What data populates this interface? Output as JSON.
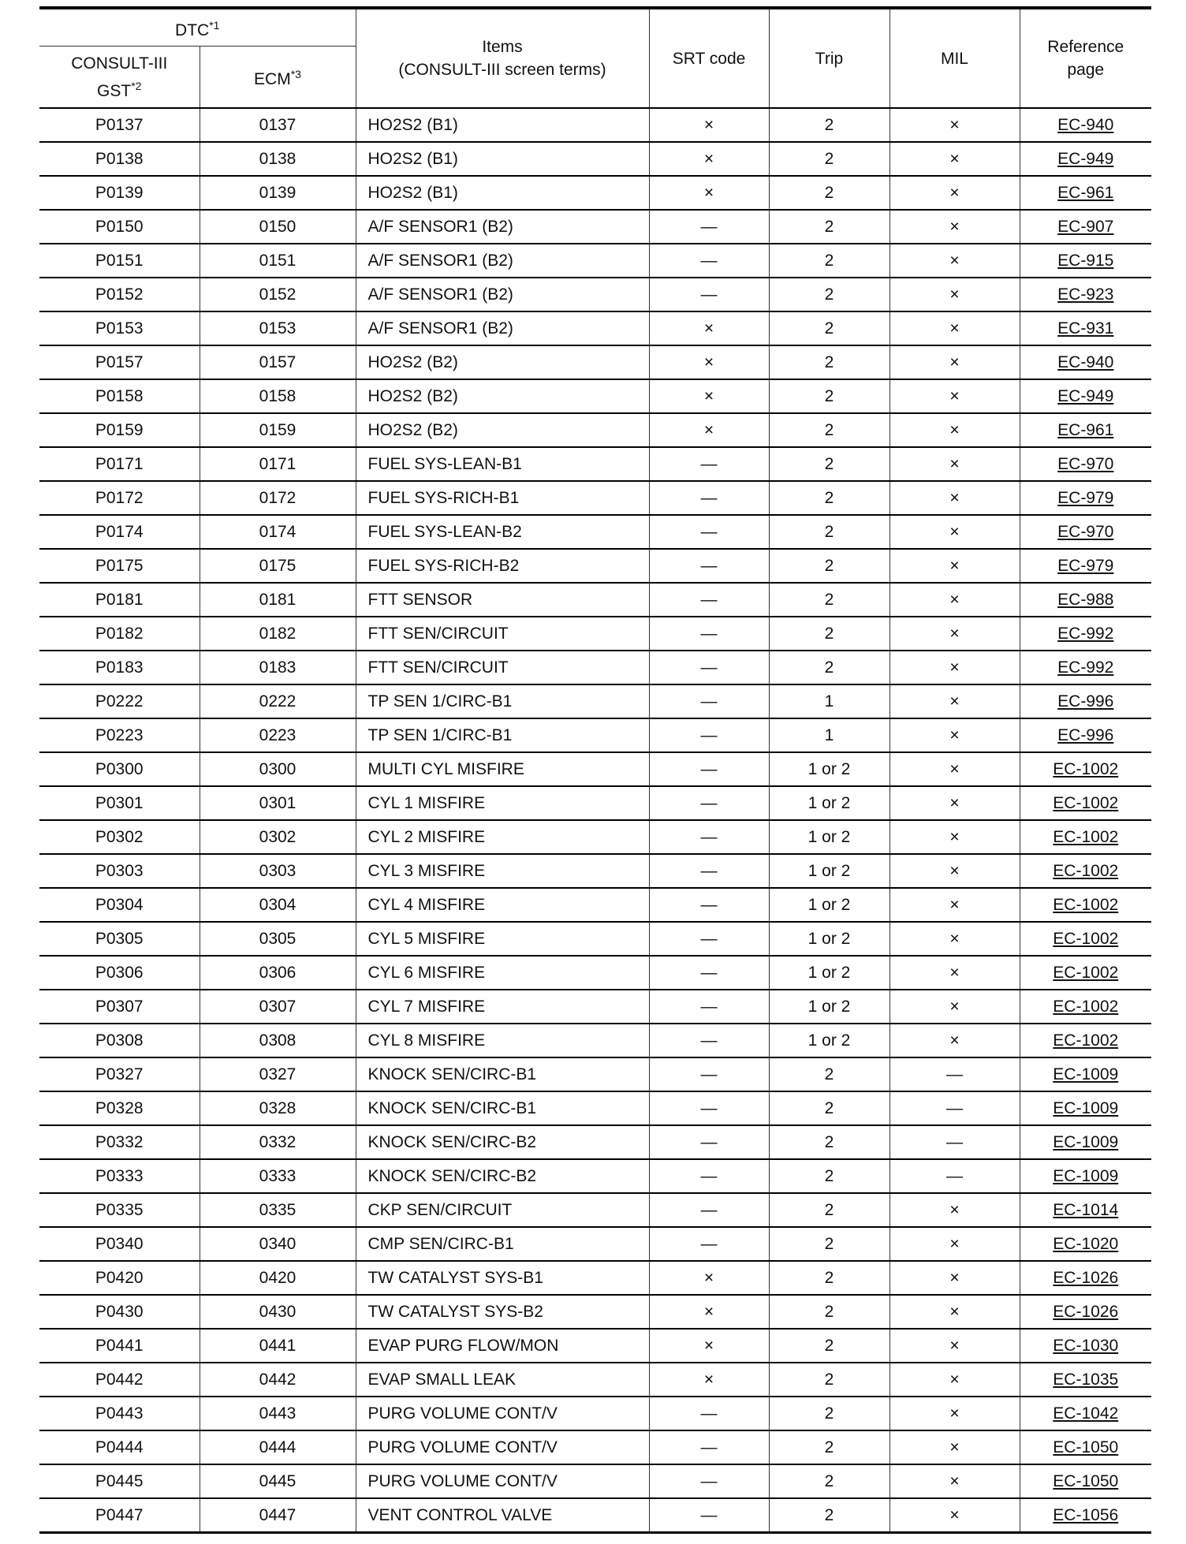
{
  "header": {
    "dtc": "DTC",
    "dtc_sup": "*1",
    "consult": "CONSULT-III",
    "gst": "GST",
    "gst_sup": "*2",
    "ecm": "ECM",
    "ecm_sup": "*3",
    "items": "Items",
    "items_sub": "(CONSULT-III screen terms)",
    "srt": "SRT code",
    "trip": "Trip",
    "mil": "MIL",
    "ref": "Reference",
    "ref_sub": "page"
  },
  "rows": [
    [
      "P0137",
      "0137",
      "HO2S2 (B1)",
      "×",
      "2",
      "×",
      "EC-940"
    ],
    [
      "P0138",
      "0138",
      "HO2S2 (B1)",
      "×",
      "2",
      "×",
      "EC-949"
    ],
    [
      "P0139",
      "0139",
      "HO2S2 (B1)",
      "×",
      "2",
      "×",
      "EC-961"
    ],
    [
      "P0150",
      "0150",
      "A/F SENSOR1 (B2)",
      "—",
      "2",
      "×",
      "EC-907"
    ],
    [
      "P0151",
      "0151",
      "A/F SENSOR1 (B2)",
      "—",
      "2",
      "×",
      "EC-915"
    ],
    [
      "P0152",
      "0152",
      "A/F SENSOR1 (B2)",
      "—",
      "2",
      "×",
      "EC-923"
    ],
    [
      "P0153",
      "0153",
      "A/F SENSOR1 (B2)",
      "×",
      "2",
      "×",
      "EC-931"
    ],
    [
      "P0157",
      "0157",
      "HO2S2 (B2)",
      "×",
      "2",
      "×",
      "EC-940"
    ],
    [
      "P0158",
      "0158",
      "HO2S2 (B2)",
      "×",
      "2",
      "×",
      "EC-949"
    ],
    [
      "P0159",
      "0159",
      "HO2S2 (B2)",
      "×",
      "2",
      "×",
      "EC-961"
    ],
    [
      "P0171",
      "0171",
      "FUEL SYS-LEAN-B1",
      "—",
      "2",
      "×",
      "EC-970"
    ],
    [
      "P0172",
      "0172",
      "FUEL SYS-RICH-B1",
      "—",
      "2",
      "×",
      "EC-979"
    ],
    [
      "P0174",
      "0174",
      "FUEL SYS-LEAN-B2",
      "—",
      "2",
      "×",
      "EC-970"
    ],
    [
      "P0175",
      "0175",
      "FUEL SYS-RICH-B2",
      "—",
      "2",
      "×",
      "EC-979"
    ],
    [
      "P0181",
      "0181",
      "FTT SENSOR",
      "—",
      "2",
      "×",
      "EC-988"
    ],
    [
      "P0182",
      "0182",
      "FTT SEN/CIRCUIT",
      "—",
      "2",
      "×",
      "EC-992"
    ],
    [
      "P0183",
      "0183",
      "FTT SEN/CIRCUIT",
      "—",
      "2",
      "×",
      "EC-992"
    ],
    [
      "P0222",
      "0222",
      "TP SEN 1/CIRC-B1",
      "—",
      "1",
      "×",
      "EC-996"
    ],
    [
      "P0223",
      "0223",
      "TP SEN 1/CIRC-B1",
      "—",
      "1",
      "×",
      "EC-996"
    ],
    [
      "P0300",
      "0300",
      "MULTI CYL MISFIRE",
      "—",
      "1 or 2",
      "×",
      "EC-1002"
    ],
    [
      "P0301",
      "0301",
      "CYL 1 MISFIRE",
      "—",
      "1 or 2",
      "×",
      "EC-1002"
    ],
    [
      "P0302",
      "0302",
      "CYL 2 MISFIRE",
      "—",
      "1 or 2",
      "×",
      "EC-1002"
    ],
    [
      "P0303",
      "0303",
      "CYL 3 MISFIRE",
      "—",
      "1 or 2",
      "×",
      "EC-1002"
    ],
    [
      "P0304",
      "0304",
      "CYL 4 MISFIRE",
      "—",
      "1 or 2",
      "×",
      "EC-1002"
    ],
    [
      "P0305",
      "0305",
      "CYL 5 MISFIRE",
      "—",
      "1 or 2",
      "×",
      "EC-1002"
    ],
    [
      "P0306",
      "0306",
      "CYL 6 MISFIRE",
      "—",
      "1 or 2",
      "×",
      "EC-1002"
    ],
    [
      "P0307",
      "0307",
      "CYL 7 MISFIRE",
      "—",
      "1 or 2",
      "×",
      "EC-1002"
    ],
    [
      "P0308",
      "0308",
      "CYL 8 MISFIRE",
      "—",
      "1 or 2",
      "×",
      "EC-1002"
    ],
    [
      "P0327",
      "0327",
      "KNOCK SEN/CIRC-B1",
      "—",
      "2",
      "—",
      "EC-1009"
    ],
    [
      "P0328",
      "0328",
      "KNOCK SEN/CIRC-B1",
      "—",
      "2",
      "—",
      "EC-1009"
    ],
    [
      "P0332",
      "0332",
      "KNOCK SEN/CIRC-B2",
      "—",
      "2",
      "—",
      "EC-1009"
    ],
    [
      "P0333",
      "0333",
      "KNOCK SEN/CIRC-B2",
      "—",
      "2",
      "—",
      "EC-1009"
    ],
    [
      "P0335",
      "0335",
      "CKP SEN/CIRCUIT",
      "—",
      "2",
      "×",
      "EC-1014"
    ],
    [
      "P0340",
      "0340",
      "CMP SEN/CIRC-B1",
      "—",
      "2",
      "×",
      "EC-1020"
    ],
    [
      "P0420",
      "0420",
      "TW CATALYST SYS-B1",
      "×",
      "2",
      "×",
      "EC-1026"
    ],
    [
      "P0430",
      "0430",
      "TW CATALYST SYS-B2",
      "×",
      "2",
      "×",
      "EC-1026"
    ],
    [
      "P0441",
      "0441",
      "EVAP PURG FLOW/MON",
      "×",
      "2",
      "×",
      "EC-1030"
    ],
    [
      "P0442",
      "0442",
      "EVAP SMALL LEAK",
      "×",
      "2",
      "×",
      "EC-1035"
    ],
    [
      "P0443",
      "0443",
      "PURG VOLUME CONT/V",
      "—",
      "2",
      "×",
      "EC-1042"
    ],
    [
      "P0444",
      "0444",
      "PURG VOLUME CONT/V",
      "—",
      "2",
      "×",
      "EC-1050"
    ],
    [
      "P0445",
      "0445",
      "PURG VOLUME CONT/V",
      "—",
      "2",
      "×",
      "EC-1050"
    ],
    [
      "P0447",
      "0447",
      "VENT CONTROL VALVE",
      "—",
      "2",
      "×",
      "EC-1056"
    ]
  ]
}
